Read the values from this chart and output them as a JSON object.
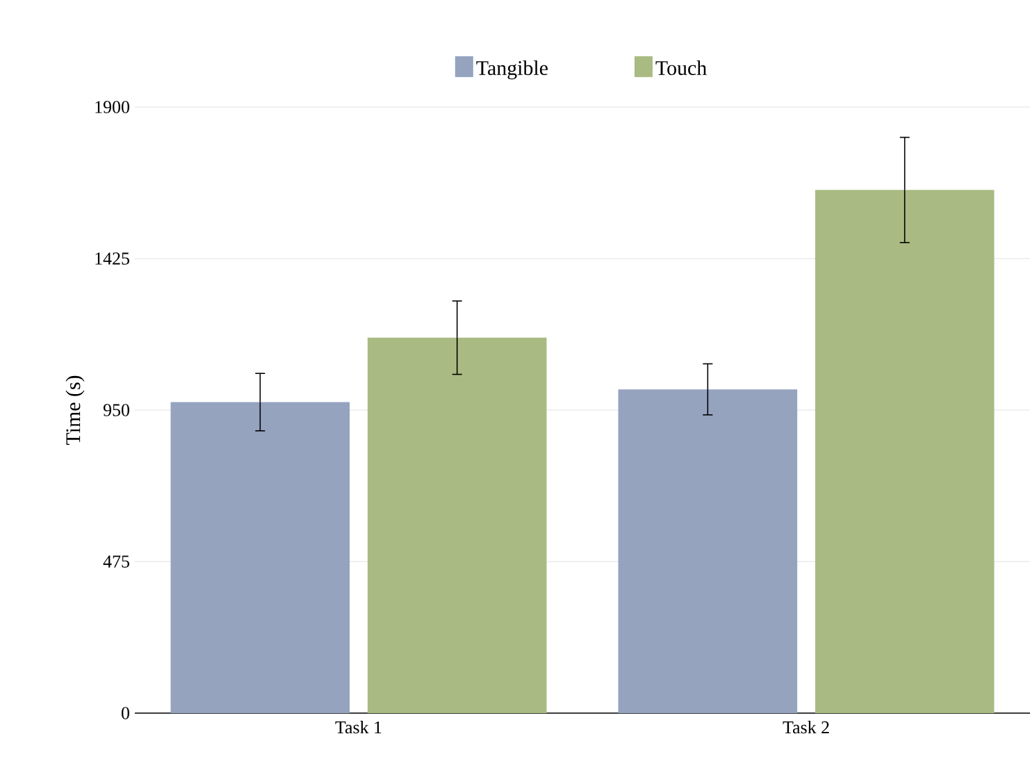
{
  "chart_data": {
    "type": "bar",
    "ylabel": "Time (s)",
    "categories": [
      "Task 1",
      "Task 2"
    ],
    "series": [
      {
        "name": "Tangible",
        "color": "#95a3bf",
        "values": [
          975,
          1015
        ],
        "errors": [
          90,
          80
        ]
      },
      {
        "name": "Touch",
        "color": "#a9bb82",
        "values": [
          1177,
          1640
        ],
        "errors": [
          115,
          165
        ]
      }
    ],
    "ylim": [
      0,
      1900
    ],
    "yticks": [
      0,
      475,
      950,
      1425,
      1900
    ],
    "grid": "y",
    "legend": "top"
  }
}
